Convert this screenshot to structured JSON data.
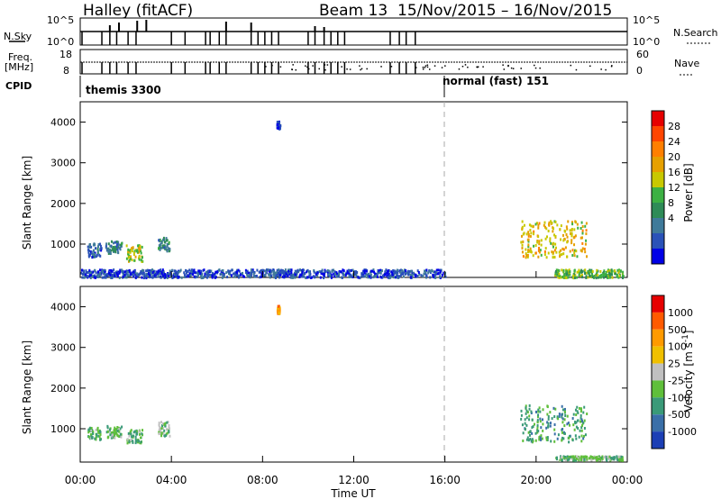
{
  "title": {
    "station": "Halley (fitACF)",
    "beam": "Beam 13",
    "date_range": "15/Nov/2015 – 16/Nov/2015"
  },
  "header": {
    "nsky_label": "N.Sky",
    "nsearch_label": "N.Search",
    "nsky_ticks": [
      "10^5",
      "10^0"
    ],
    "nsearch_ticks": [
      "10^5",
      "10^0"
    ],
    "freq_label": "Freq.",
    "freq_unit": "[MHz]",
    "freq_ticks": [
      "18",
      "8"
    ],
    "nave_label": "Nave",
    "nave_ticks": [
      "60",
      "0"
    ],
    "cpid_label": "CPID",
    "cpid_segments": [
      {
        "label": "themis 3300",
        "start_hour": 0
      },
      {
        "label": "normal (fast) 151",
        "start_hour": 16
      }
    ]
  },
  "chart_data": [
    {
      "type": "heatmap",
      "name": "power",
      "ylabel": "Slant Range [km]",
      "ylim": [
        180,
        4500
      ],
      "yticks": [
        "4000",
        "3000",
        "2000",
        "1000"
      ],
      "xlabel": "",
      "colorbar": {
        "label": "Power [dB]",
        "ticks": [
          "28",
          "24",
          "20",
          "16",
          "12",
          "8",
          "4"
        ],
        "colors": [
          "#0000e6",
          "#2a52b8",
          "#3f7a9a",
          "#2e8b57",
          "#3cb043",
          "#c8c800",
          "#e6a000",
          "#ff7f00",
          "#ff4500",
          "#e60000"
        ]
      },
      "dashed_marker_hour": 16,
      "scatter_clusters": [
        {
          "hour_start": 0.3,
          "hour_end": 0.9,
          "range_min": 700,
          "range_max": 1050,
          "level": 0.2
        },
        {
          "hour_start": 1.1,
          "hour_end": 1.8,
          "range_min": 800,
          "range_max": 1100,
          "level": 0.3
        },
        {
          "hour_start": 2.0,
          "hour_end": 2.7,
          "range_min": 600,
          "range_max": 1000,
          "level": 0.55
        },
        {
          "hour_start": 3.4,
          "hour_end": 3.9,
          "range_min": 850,
          "range_max": 1200,
          "level": 0.3
        },
        {
          "hour_start": 8.6,
          "hour_end": 8.75,
          "range_min": 3850,
          "range_max": 4050,
          "level": 0.1
        },
        {
          "hour_start": 19.3,
          "hour_end": 22.2,
          "range_min": 700,
          "range_max": 1600,
          "level": 0.6
        },
        {
          "hour_start": 20.8,
          "hour_end": 23.8,
          "range_min": 200,
          "range_max": 400,
          "level": 0.45
        },
        {
          "hour_start": 0.0,
          "hour_end": 16.0,
          "range_min": 200,
          "range_max": 400,
          "level": 0.15
        }
      ]
    },
    {
      "type": "heatmap",
      "name": "velocity",
      "ylabel": "Slant Range [km]",
      "ylim": [
        180,
        4500
      ],
      "yticks": [
        "4000",
        "3000",
        "2000",
        "1000"
      ],
      "xlabel": "Time UT",
      "xticks": [
        "00:00",
        "04:00",
        "08:00",
        "12:00",
        "16:00",
        "20:00",
        "00:00"
      ],
      "colorbar": {
        "label": "Velocity [m s^-1]",
        "ticks": [
          "1000",
          "500",
          "100",
          "25",
          "-25",
          "-100",
          "-500",
          "-1000"
        ],
        "colors": [
          "#1c3fb5",
          "#3a6fa8",
          "#3a9a78",
          "#5fbf3a",
          "#c0c0c0",
          "#f0c000",
          "#ff9a00",
          "#ff5a00",
          "#e60000"
        ]
      },
      "dashed_marker_hour": 16,
      "scatter_clusters": [
        {
          "hour_start": 0.3,
          "hour_end": 0.9,
          "range_min": 750,
          "range_max": 1050,
          "level": 0.35
        },
        {
          "hour_start": 1.1,
          "hour_end": 1.8,
          "range_min": 800,
          "range_max": 1100,
          "level": 0.4
        },
        {
          "hour_start": 2.0,
          "hour_end": 2.7,
          "range_min": 650,
          "range_max": 1000,
          "level": 0.35
        },
        {
          "hour_start": 3.4,
          "hour_end": 3.9,
          "range_min": 850,
          "range_max": 1200,
          "level": 0.4
        },
        {
          "hour_start": 8.6,
          "hour_end": 8.75,
          "range_min": 3850,
          "range_max": 4050,
          "level": 0.7
        },
        {
          "hour_start": 19.3,
          "hour_end": 22.2,
          "range_min": 700,
          "range_max": 1600,
          "level": 0.3
        },
        {
          "hour_start": 20.8,
          "hour_end": 23.8,
          "range_min": 250,
          "range_max": 350,
          "level": 0.38
        }
      ]
    }
  ]
}
